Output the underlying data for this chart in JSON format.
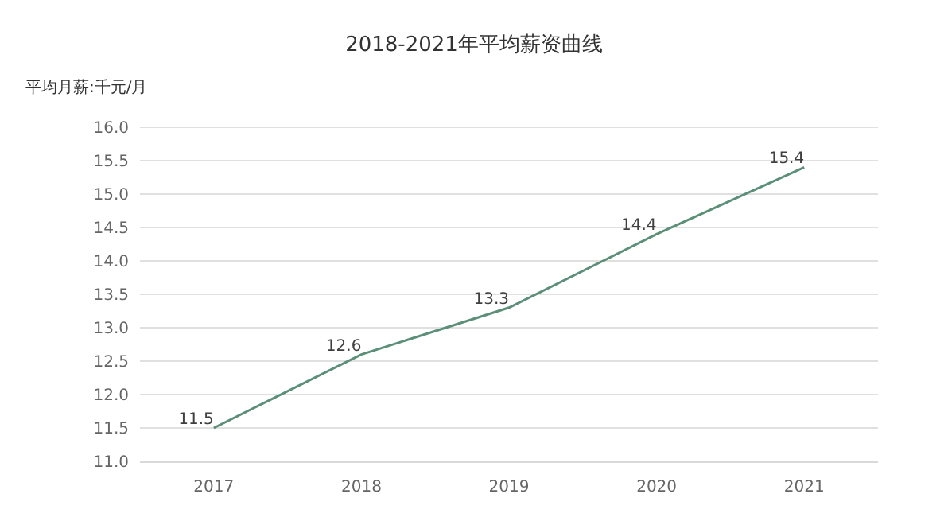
{
  "chart_data": {
    "type": "line",
    "title": "2018-2021年平均薪资曲线",
    "ylabel": "平均月薪:千元/月",
    "categories": [
      "2017",
      "2018",
      "2019",
      "2020",
      "2021"
    ],
    "series": [
      {
        "color": "#5b8f78",
        "values": [
          11.5,
          12.6,
          13.3,
          14.4,
          15.4
        ]
      }
    ],
    "ylim": [
      11.0,
      16.0
    ],
    "yticks": [
      {
        "value": 11.0,
        "label": "11.0"
      },
      {
        "value": 11.5,
        "label": "11.5"
      },
      {
        "value": 12.0,
        "label": "12.0"
      },
      {
        "value": 12.5,
        "label": "12.5"
      },
      {
        "value": 13.0,
        "label": "13.0"
      },
      {
        "value": 13.5,
        "label": "13.5"
      },
      {
        "value": 14.0,
        "label": "14.0"
      },
      {
        "value": 14.5,
        "label": "14.5"
      },
      {
        "value": 15.0,
        "label": "15.0"
      },
      {
        "value": 15.5,
        "label": "15.5"
      },
      {
        "value": 16.0,
        "label": "16.0"
      }
    ],
    "grid": "y",
    "data_labels": true,
    "marker": "none",
    "line_style": "solid"
  }
}
